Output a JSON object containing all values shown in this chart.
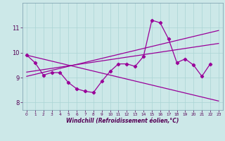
{
  "x": [
    0,
    1,
    2,
    3,
    4,
    5,
    6,
    7,
    8,
    9,
    10,
    11,
    12,
    13,
    14,
    15,
    16,
    17,
    18,
    19,
    20,
    21,
    22,
    23
  ],
  "y_main": [
    9.9,
    9.6,
    9.1,
    9.2,
    9.2,
    8.8,
    8.55,
    8.45,
    8.4,
    8.85,
    9.25,
    9.55,
    9.55,
    9.45,
    9.85,
    11.3,
    11.2,
    10.55,
    9.6,
    9.75,
    9.5,
    9.05,
    9.55,
    null
  ],
  "y_trend_up1": [
    9.05,
    9.13,
    9.21,
    9.29,
    9.37,
    9.45,
    9.53,
    9.61,
    9.69,
    9.77,
    9.85,
    9.93,
    10.01,
    10.09,
    10.17,
    10.25,
    10.33,
    10.41,
    10.49,
    10.57,
    10.65,
    10.73,
    10.81,
    10.89
  ],
  "y_trend_up2": [
    9.22,
    9.27,
    9.32,
    9.37,
    9.42,
    9.47,
    9.52,
    9.57,
    9.62,
    9.67,
    9.72,
    9.77,
    9.82,
    9.87,
    9.92,
    9.97,
    10.02,
    10.07,
    10.12,
    10.17,
    10.22,
    10.27,
    10.32,
    10.37
  ],
  "y_trend_down": [
    9.9,
    9.82,
    9.74,
    9.66,
    9.58,
    9.5,
    9.42,
    9.34,
    9.26,
    9.18,
    9.1,
    9.02,
    8.94,
    8.86,
    8.78,
    8.7,
    8.62,
    8.54,
    8.46,
    8.38,
    8.3,
    8.22,
    8.14,
    8.06
  ],
  "line_color": "#990099",
  "bg_color": "#cce8e8",
  "grid_color": "#aad4d4",
  "xlabel": "Windchill (Refroidissement éolien,°C)",
  "yticks": [
    8,
    9,
    10,
    11
  ],
  "xticks": [
    0,
    1,
    2,
    3,
    4,
    5,
    6,
    7,
    8,
    9,
    10,
    11,
    12,
    13,
    14,
    15,
    16,
    17,
    18,
    19,
    20,
    21,
    22,
    23
  ],
  "ylim": [
    7.7,
    12.0
  ],
  "xlim": [
    -0.5,
    23.5
  ]
}
